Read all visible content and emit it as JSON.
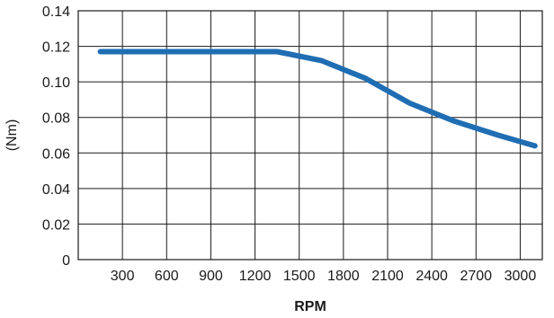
{
  "chart_data": {
    "type": "line",
    "title": "",
    "xlabel": "RPM",
    "ylabel": "(Nm)",
    "xlim": [
      0,
      3150
    ],
    "ylim": [
      0,
      0.14
    ],
    "grid": true,
    "x_ticks": [
      {
        "value": 300,
        "label": "300"
      },
      {
        "value": 600,
        "label": "600"
      },
      {
        "value": 900,
        "label": "900"
      },
      {
        "value": 1200,
        "label": "1200"
      },
      {
        "value": 1500,
        "label": "1500"
      },
      {
        "value": 1800,
        "label": "1800"
      },
      {
        "value": 2100,
        "label": "2100"
      },
      {
        "value": 2400,
        "label": "2400"
      },
      {
        "value": 2700,
        "label": "2700"
      },
      {
        "value": 3000,
        "label": "3000"
      }
    ],
    "y_ticks": [
      {
        "value": 0,
        "label": "0"
      },
      {
        "value": 0.02,
        "label": "0.02"
      },
      {
        "value": 0.04,
        "label": "0.04"
      },
      {
        "value": 0.06,
        "label": "0.06"
      },
      {
        "value": 0.08,
        "label": "0.08"
      },
      {
        "value": 0.1,
        "label": "0.10"
      },
      {
        "value": 0.12,
        "label": "0.12"
      },
      {
        "value": 0.14,
        "label": "0.14"
      }
    ],
    "series": [
      {
        "color": "#1f6db3",
        "x": [
          150,
          1350,
          1650,
          1950,
          2250,
          2550,
          2850,
          3100
        ],
        "values": [
          0.117,
          0.117,
          0.112,
          0.102,
          0.088,
          0.078,
          0.07,
          0.064
        ]
      }
    ]
  }
}
